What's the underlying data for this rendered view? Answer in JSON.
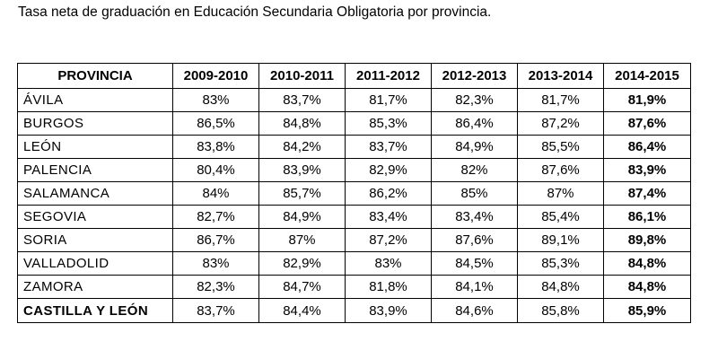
{
  "document": {
    "title": "Tasa neta de graduación  en Educación Secundaria Obligatoria por provincia."
  },
  "table": {
    "headers": [
      "PROVINCIA",
      "2009-2010",
      "2010-2011",
      "2011-2012",
      "2012-2013",
      "2013-2014",
      "2014-2015"
    ],
    "rows": [
      {
        "province": "ÁVILA",
        "values": [
          "83%",
          "83,7%",
          "81,7%",
          "82,3%",
          "81,7%",
          "81,9%"
        ]
      },
      {
        "province": "BURGOS",
        "values": [
          "86,5%",
          "84,8%",
          "85,3%",
          "86,4%",
          "87,2%",
          "87,6%"
        ]
      },
      {
        "province": "LEÓN",
        "values": [
          "83,8%",
          "84,2%",
          "83,7%",
          "84,9%",
          "85,5%",
          "86,4%"
        ]
      },
      {
        "province": "PALENCIA",
        "values": [
          "80,4%",
          "83,9%",
          "82,9%",
          "82%",
          "87,6%",
          "83,9%"
        ]
      },
      {
        "province": "SALAMANCA",
        "values": [
          "84%",
          "85,7%",
          "86,2%",
          "85%",
          "87%",
          "87,4%"
        ]
      },
      {
        "province": "SEGOVIA",
        "values": [
          "82,7%",
          "84,9%",
          "83,4%",
          "83,4%",
          "85,4%",
          "86,1%"
        ]
      },
      {
        "province": "SORIA",
        "values": [
          "86,7%",
          "87%",
          "87,2%",
          "87,6%",
          "89,1%",
          "89,8%"
        ]
      },
      {
        "province": "VALLADOLID",
        "values": [
          "83%",
          "82,9%",
          "83%",
          "84,5%",
          "85,3%",
          "84,8%"
        ]
      },
      {
        "province": "ZAMORA",
        "values": [
          "82,3%",
          "84,7%",
          "81,8%",
          "84,1%",
          "84,8%",
          "84,8%"
        ]
      }
    ],
    "total": {
      "province": "CASTILLA Y LEÓN",
      "values": [
        "83,7%",
        "84,4%",
        "83,9%",
        "84,6%",
        "85,8%",
        "85,9%"
      ]
    }
  }
}
